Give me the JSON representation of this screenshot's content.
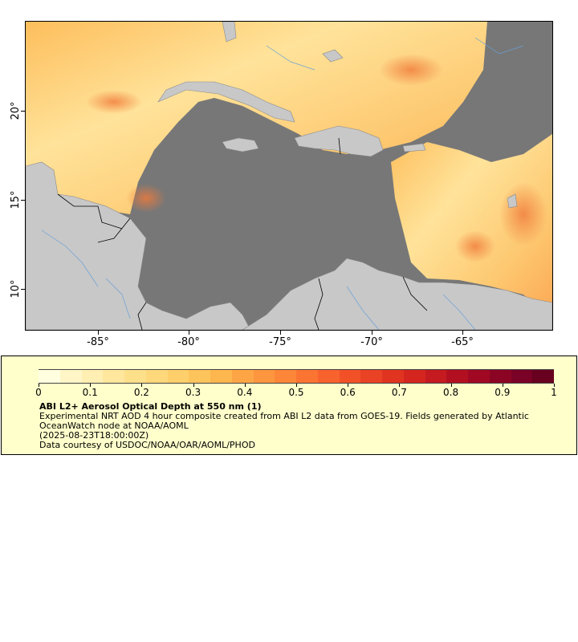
{
  "map": {
    "x_ticks": [
      "-85°",
      "-80°",
      "-75°",
      "-70°",
      "-65°"
    ],
    "y_ticks": [
      "20°",
      "15°",
      "10°"
    ],
    "colors": {
      "ocean_nodata": "#777777",
      "land": "#c8c8c8",
      "rivers": "#6aa0d8",
      "borders": "#000000",
      "aod_low": "#ffefb0",
      "aod_mid": "#fdbe5c",
      "aod_high": "#e8502a"
    }
  },
  "legend": {
    "colorbar_ticks": [
      "0",
      "0.1",
      "0.2",
      "0.3",
      "0.4",
      "0.5",
      "0.6",
      "0.7",
      "0.8",
      "0.9",
      "1"
    ],
    "title": "ABI L2+ Aerosol Optical Depth at 550 nm (1)",
    "description": "Experimental NRT AOD 4 hour composite created from ABI L2 data from GOES-19. Fields generated by Atlantic OceanWatch node at NOAA/AOML",
    "timestamp": "(2025-08-23T18:00:00Z)",
    "credit": "Data courtesy of USDOC/NOAA/OAR/AOML/PHOD",
    "colormap": [
      "#ffffe0",
      "#fff6c8",
      "#ffefb2",
      "#ffe79e",
      "#fee08b",
      "#fed87a",
      "#fecf6a",
      "#fec45c",
      "#feb64f",
      "#fea646",
      "#fd963e",
      "#fd8638",
      "#fc7432",
      "#f8622d",
      "#f25128",
      "#ea4224",
      "#e03421",
      "#d4261f",
      "#c41a20",
      "#b21021",
      "#a00823",
      "#8c0424",
      "#7a0226",
      "#68001f"
    ]
  }
}
